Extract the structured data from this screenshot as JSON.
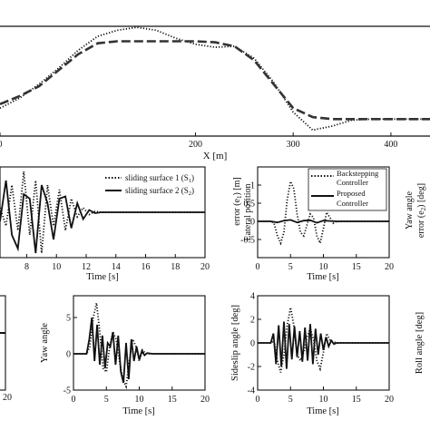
{
  "chart_data": [
    {
      "id": "trajectory",
      "type": "line",
      "xlabel": "X [m]",
      "xlim": [
        0,
        440
      ],
      "ylim": [
        -1,
        4.5
      ],
      "xticks": [
        0,
        200,
        300,
        400
      ],
      "xtick_labels": [
        "0",
        "200",
        "300",
        "400"
      ],
      "series": [
        {
          "style": "dotted",
          "x": [
            0,
            20,
            40,
            60,
            80,
            100,
            120,
            140,
            160,
            180,
            200,
            220,
            240,
            260,
            280,
            300,
            320,
            340,
            360,
            380,
            400,
            420,
            440
          ],
          "y": [
            0.4,
            0.9,
            1.6,
            2.4,
            3.3,
            4.0,
            4.3,
            4.45,
            4.3,
            3.9,
            3.6,
            3.45,
            3.5,
            2.9,
            1.7,
            0.2,
            -0.7,
            -0.5,
            -0.2,
            -0.15,
            -0.15,
            -0.15,
            -0.15
          ]
        },
        {
          "style": "dashed-thick",
          "x": [
            0,
            20,
            40,
            60,
            80,
            100,
            120,
            140,
            160,
            180,
            200,
            220,
            240,
            260,
            280,
            300,
            320,
            340,
            360,
            380,
            400,
            420,
            440
          ],
          "y": [
            0.6,
            1.0,
            1.5,
            2.3,
            3.1,
            3.65,
            3.75,
            3.75,
            3.75,
            3.75,
            3.75,
            3.7,
            3.5,
            2.8,
            1.6,
            0.4,
            -0.05,
            -0.15,
            -0.15,
            -0.15,
            -0.15,
            -0.15,
            -0.15
          ]
        }
      ]
    },
    {
      "id": "sliding-surface",
      "type": "line",
      "xlabel": "Time [s]",
      "xlim": [
        6.2,
        20
      ],
      "ylim": [
        -1,
        1
      ],
      "xticks": [
        8,
        10,
        12,
        14,
        16,
        18,
        20
      ],
      "xtick_labels": [
        "8",
        "10",
        "12",
        "14",
        "16",
        "18",
        "20"
      ],
      "legend": [
        "sliding surface 1 (S1)",
        "sliding surface 2 (S2)"
      ],
      "series": [
        {
          "name": "sliding surface 1 (S1)",
          "style": "dotted",
          "x": [
            6.2,
            6.6,
            7.0,
            7.4,
            7.8,
            8.2,
            8.6,
            9.0,
            9.4,
            9.8,
            10.2,
            10.6,
            11.0,
            11.4,
            11.8,
            12.2,
            12.6,
            13.0,
            14,
            16,
            20
          ],
          "y": [
            0.1,
            -0.3,
            0.6,
            -0.4,
            0.9,
            -0.5,
            0.7,
            -0.9,
            0.6,
            -0.3,
            0.5,
            -0.4,
            0.3,
            -0.1,
            0.1,
            -0.05,
            0.02,
            0.0,
            0.0,
            0.0,
            0.0
          ]
        },
        {
          "name": "sliding surface 2 (S2)",
          "style": "solid",
          "x": [
            6.2,
            6.6,
            7.0,
            7.4,
            7.8,
            8.2,
            8.6,
            9.0,
            9.4,
            9.8,
            10.2,
            10.6,
            11.0,
            11.4,
            11.8,
            12.2,
            12.6,
            13.0,
            14,
            16,
            20
          ],
          "y": [
            -0.2,
            0.7,
            -0.5,
            -0.8,
            0.4,
            0.3,
            -0.9,
            0.6,
            0.2,
            -0.6,
            0.3,
            0.35,
            -0.35,
            0.2,
            -0.15,
            0.05,
            -0.02,
            0.0,
            0.0,
            0.0,
            0.0
          ]
        }
      ]
    },
    {
      "id": "lateral-position-error",
      "type": "line",
      "ylabel": "Lateral position error (e1) [m]",
      "xlabel": "Time [s]",
      "xlim": [
        0,
        20
      ],
      "ylim": [
        -1,
        1.5
      ],
      "xticks": [
        0,
        5,
        10,
        15,
        20
      ],
      "xtick_labels": [
        "0",
        "5",
        "10",
        "15",
        "20"
      ],
      "yticks": [
        -0.5,
        0,
        0.5,
        1
      ],
      "ytick_labels": [
        "-0.5",
        "0",
        "0.5",
        "1"
      ],
      "legend": [
        "Backstepping Controller",
        "Proposed Controller"
      ],
      "series": [
        {
          "name": "Backstepping Controller",
          "style": "dotted",
          "x": [
            0,
            2,
            2.5,
            3,
            3.5,
            4,
            4.5,
            5,
            5.5,
            6,
            6.5,
            7,
            7.5,
            8,
            8.5,
            9,
            9.5,
            10,
            10.5,
            11,
            11.5,
            12,
            13,
            20
          ],
          "y": [
            0,
            0,
            -0.05,
            -0.4,
            -0.6,
            -0.3,
            0.6,
            1.1,
            0.9,
            0.2,
            -0.3,
            -0.4,
            -0.1,
            0.2,
            0.1,
            -0.4,
            -0.6,
            -0.2,
            0.25,
            0.1,
            -0.05,
            0.0,
            0.0,
            0.0
          ]
        },
        {
          "name": "Proposed Controller",
          "style": "solid",
          "x": [
            0,
            2,
            3,
            4,
            5,
            6,
            7,
            8,
            9,
            10,
            11,
            12,
            13,
            20
          ],
          "y": [
            0,
            0,
            -0.03,
            0.02,
            0.04,
            -0.03,
            0.02,
            0.03,
            -0.04,
            0.02,
            0.01,
            0.0,
            0.0,
            0.0
          ]
        }
      ]
    },
    {
      "id": "yaw-angle-error",
      "type": "line",
      "ylabel": "Yaw angle error (e2) [deg]",
      "series": []
    },
    {
      "id": "bottom-left-partial",
      "type": "line",
      "xlabel": "",
      "xlim": [
        18,
        20
      ],
      "ylim": [
        -1,
        1
      ],
      "xticks": [
        20
      ],
      "xtick_labels": [
        "20"
      ],
      "series": [
        {
          "style": "solid",
          "x": [
            18,
            20
          ],
          "y": [
            0,
            0
          ]
        }
      ]
    },
    {
      "id": "yaw-angle",
      "type": "line",
      "ylabel": "Yaw angle",
      "xlabel": "Time [s]",
      "xlim": [
        0,
        20
      ],
      "ylim": [
        -5,
        8
      ],
      "xticks": [
        0,
        5,
        10,
        15,
        20
      ],
      "xtick_labels": [
        "0",
        "5",
        "10",
        "15",
        "20"
      ],
      "yticks": [
        -5,
        0,
        5
      ],
      "ytick_labels": [
        "-5",
        "0",
        "5"
      ],
      "series": [
        {
          "style": "dotted",
          "x": [
            0,
            2,
            2.5,
            3,
            3.5,
            4,
            4.5,
            5,
            5.5,
            6,
            6.5,
            7,
            7.5,
            8,
            8.5,
            9,
            9.5,
            10,
            10.5,
            11,
            12,
            20
          ],
          "y": [
            0,
            0,
            1,
            5,
            7,
            3,
            -2,
            -2.5,
            1,
            3,
            2,
            -1,
            -3.5,
            -4.5,
            -1,
            2,
            1,
            -1,
            0.5,
            0,
            0,
            0
          ]
        },
        {
          "style": "solid",
          "x": [
            0,
            2,
            2.4,
            2.8,
            3.2,
            3.6,
            4.0,
            4.4,
            4.8,
            5.2,
            5.6,
            6.0,
            6.4,
            6.8,
            7.2,
            7.6,
            8.0,
            8.4,
            8.8,
            9.2,
            9.6,
            10.0,
            10.4,
            10.8,
            11.2,
            12,
            20
          ],
          "y": [
            0,
            0,
            2,
            5,
            -1,
            4,
            -1.5,
            2.5,
            -2,
            1.5,
            1,
            3,
            -1.5,
            2.5,
            -2.5,
            -4,
            1.5,
            -3.5,
            2,
            -1,
            1,
            -0.8,
            0.4,
            -0.2,
            0.1,
            0,
            0
          ]
        }
      ]
    },
    {
      "id": "sideslip-angle",
      "type": "line",
      "ylabel": "Sideslip angle [deg]",
      "xlabel": "Time [s]",
      "xlim": [
        0,
        20
      ],
      "ylim": [
        -4,
        4
      ],
      "xticks": [
        0,
        5,
        10,
        15,
        20
      ],
      "xtick_labels": [
        "0",
        "5",
        "10",
        "15",
        "20"
      ],
      "yticks": [
        -4,
        -2,
        0,
        2,
        4
      ],
      "ytick_labels": [
        "-4",
        "-2",
        "0",
        "2",
        "4"
      ],
      "series": [
        {
          "style": "dotted",
          "x": [
            0,
            2,
            2.5,
            3,
            3.5,
            4,
            4.5,
            5,
            5.5,
            6,
            6.5,
            7,
            7.5,
            8,
            8.5,
            9,
            9.5,
            10,
            10.5,
            11,
            12,
            20
          ],
          "y": [
            0,
            0,
            0.2,
            -1.5,
            -2.5,
            -1,
            1.5,
            3,
            1.5,
            -1,
            -1.5,
            -0.8,
            0.5,
            1.2,
            0.3,
            -1.5,
            -2.2,
            -0.8,
            0.8,
            0.2,
            0,
            0
          ]
        },
        {
          "style": "solid",
          "x": [
            0,
            2,
            2.4,
            2.8,
            3.2,
            3.6,
            4.0,
            4.4,
            4.8,
            5.2,
            5.6,
            6.0,
            6.4,
            6.8,
            7.2,
            7.6,
            8.0,
            8.4,
            8.8,
            9.2,
            9.6,
            10.0,
            10.4,
            10.8,
            11.2,
            11.6,
            12,
            20
          ],
          "y": [
            0,
            0,
            0.8,
            -1.8,
            1.5,
            -2,
            1.8,
            -2.2,
            1.6,
            -1.4,
            1.4,
            -1.2,
            1.0,
            -1.6,
            1.3,
            -1.5,
            1.6,
            -1.8,
            1.2,
            -1.0,
            0.8,
            -0.6,
            0.5,
            -0.3,
            0.2,
            -0.1,
            0,
            0
          ]
        }
      ]
    },
    {
      "id": "roll-angle",
      "type": "line",
      "ylabel": "Roll angle [deg]",
      "series": []
    }
  ]
}
